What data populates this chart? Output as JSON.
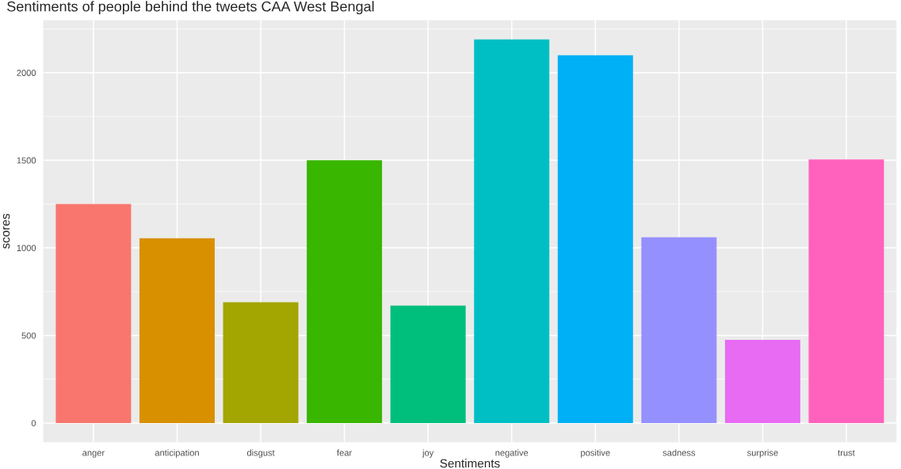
{
  "chart_data": {
    "type": "bar",
    "title": "Sentiments of people behind the tweets CAA West Bengal",
    "xlabel": "Sentiments",
    "ylabel": "scores",
    "categories": [
      "anger",
      "anticipation",
      "disgust",
      "fear",
      "joy",
      "negative",
      "positive",
      "sadness",
      "surprise",
      "trust"
    ],
    "values": [
      1250,
      1055,
      690,
      1500,
      670,
      2190,
      2100,
      1060,
      475,
      1505
    ],
    "colors": [
      "#f8766d",
      "#d89000",
      "#a3a500",
      "#39b600",
      "#00bf7d",
      "#00bfc4",
      "#00b0f6",
      "#9590ff",
      "#e76bf3",
      "#ff62bc"
    ],
    "ylim": [
      -110,
      2300
    ],
    "yticks": [
      0,
      500,
      1000,
      1500,
      2000
    ],
    "grid": true
  }
}
